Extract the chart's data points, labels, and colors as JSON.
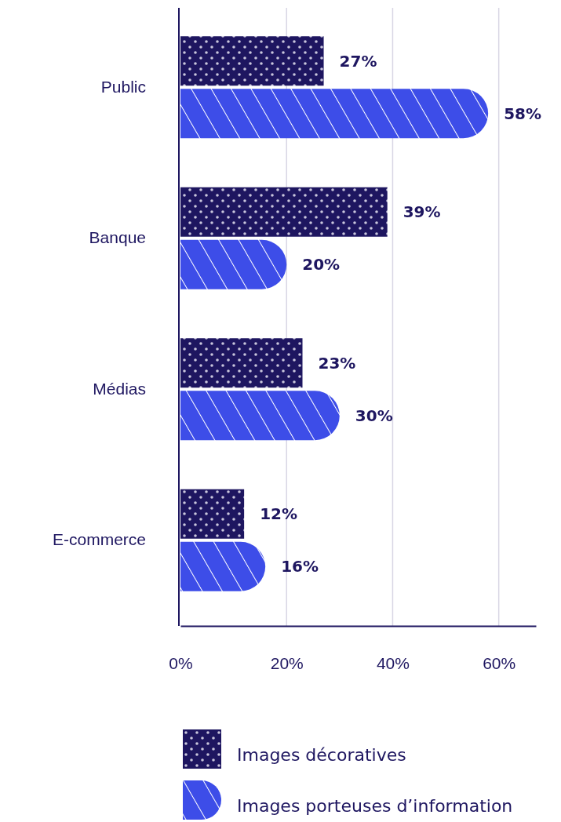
{
  "chart_data": {
    "type": "bar",
    "orientation": "horizontal",
    "categories": [
      "Public",
      "Banque",
      "Médias",
      "E-commerce"
    ],
    "series": [
      {
        "name": "Images décoratives",
        "color": "#1e1660",
        "values": [
          27,
          39,
          23,
          12
        ],
        "value_labels": [
          "27%",
          "39%",
          "23%",
          "12%"
        ]
      },
      {
        "name": "Images porteuses d’information",
        "color": "#3d4de8",
        "values": [
          58,
          20,
          30,
          16
        ],
        "value_labels": [
          "58%",
          "20%",
          "30%",
          "16%"
        ]
      }
    ],
    "xlim": [
      0,
      67
    ],
    "xticks": [
      {
        "value": 0,
        "label": "0%"
      },
      {
        "value": 20,
        "label": "20%"
      },
      {
        "value": 40,
        "label": "40%"
      },
      {
        "value": 60,
        "label": "60%"
      }
    ],
    "grid": "x",
    "legend": "bottom"
  }
}
